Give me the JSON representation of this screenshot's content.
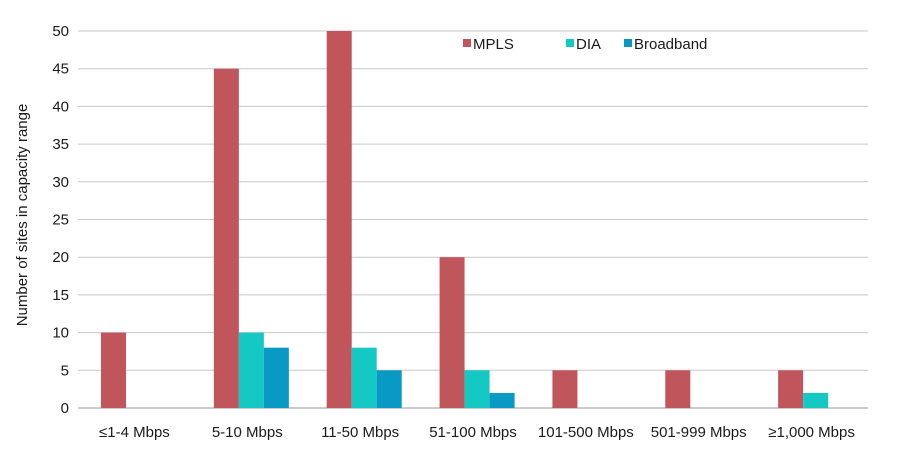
{
  "chart_data": {
    "type": "bar",
    "title": "",
    "xlabel": "",
    "ylabel": "Number of sites in capacity range",
    "ylim": [
      0,
      50
    ],
    "yticks": [
      0,
      5,
      10,
      15,
      20,
      25,
      30,
      35,
      40,
      45,
      50
    ],
    "grid": true,
    "legend_position": "top-right",
    "categories": [
      "≤1-4 Mbps",
      "5-10 Mbps",
      "11-50 Mbps",
      "51-100 Mbps",
      "101-500 Mbps",
      "501-999 Mbps",
      "≥1,000 Mbps"
    ],
    "series": [
      {
        "name": "MPLS",
        "color": "#c0555b",
        "values": [
          10,
          45,
          50,
          20,
          5,
          5,
          5
        ]
      },
      {
        "name": "DIA",
        "color": "#14c8c4",
        "values": [
          0,
          10,
          8,
          5,
          0,
          0,
          2
        ]
      },
      {
        "name": "Broadband",
        "color": "#0899c4",
        "values": [
          0,
          8,
          5,
          2,
          0,
          0,
          0
        ]
      }
    ]
  }
}
